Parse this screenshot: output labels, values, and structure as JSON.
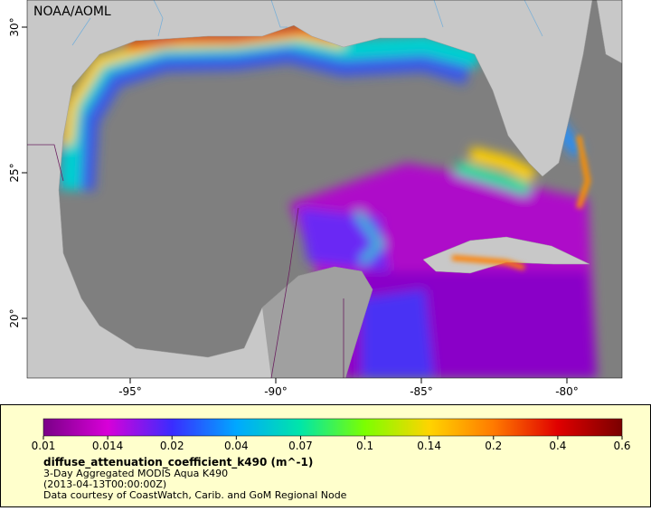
{
  "map": {
    "credit": "NOAA/AOML",
    "lon_ticks": [
      {
        "value": -95,
        "label": "-95°"
      },
      {
        "value": -90,
        "label": "-90°"
      },
      {
        "value": -85,
        "label": "-85°"
      },
      {
        "value": -80,
        "label": "-80°"
      }
    ],
    "lat_ticks": [
      {
        "value": 30,
        "label": "30°"
      },
      {
        "value": 25,
        "label": "25°"
      },
      {
        "value": 20,
        "label": "20°"
      }
    ]
  },
  "colorbar": {
    "ticks": [
      "0.01",
      "0.014",
      "0.02",
      "0.04",
      "0.07",
      "0.1",
      "0.14",
      "0.2",
      "0.4",
      "0.6"
    ],
    "colors": [
      "#7a0087",
      "#d800d8",
      "#3a2cff",
      "#00a8ff",
      "#00e6a8",
      "#7cff00",
      "#ffd400",
      "#ff7a00",
      "#e00000",
      "#7a0000"
    ]
  },
  "legend": {
    "title": "diffuse_attenuation_coefficient_k490 (m^-1)",
    "lines": [
      "3-Day Aggregated MODIS Aqua K490",
      "(2013-04-13T00:00:00Z)",
      "Data courtesy of CoastWatch, Carib. and GoM Regional Node"
    ]
  }
}
